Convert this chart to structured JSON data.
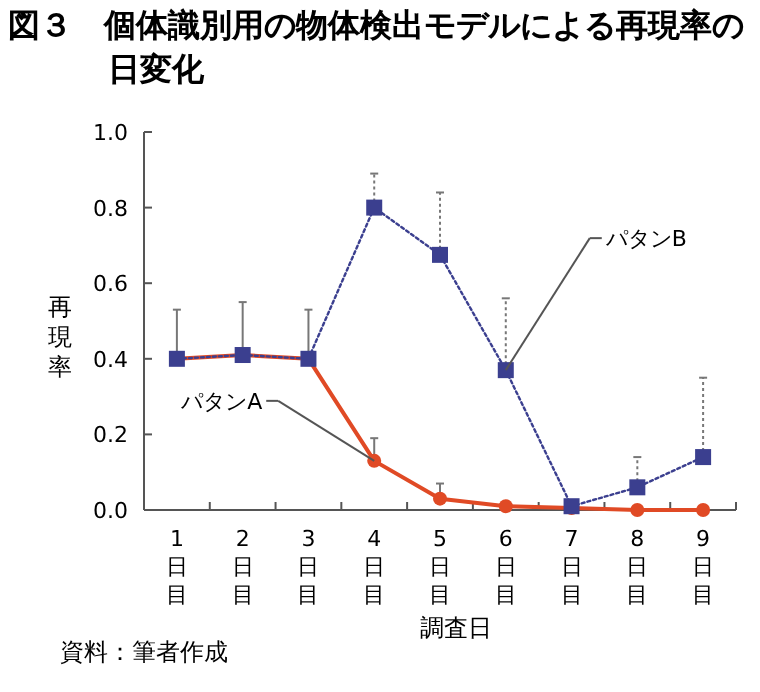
{
  "chart_data": {
    "type": "line",
    "title": "図３　個体識別用の物体検出モデルによる再現率の日変化",
    "xlabel": "調査日",
    "ylabel": "再現率",
    "annotations": [
      "資料：筆者作成"
    ],
    "categories": [
      "1日目",
      "2日目",
      "3日目",
      "4日目",
      "5日目",
      "6日目",
      "7日目",
      "8日目",
      "9日目"
    ],
    "ylim": [
      0,
      1
    ],
    "yticks": [
      {
        "value": 0,
        "label": "0.0"
      },
      {
        "value": 0.2,
        "label": "0.2"
      },
      {
        "value": 0.4,
        "label": "0.4"
      },
      {
        "value": 0.6,
        "label": "0.6"
      },
      {
        "value": 0.8,
        "label": "0.8"
      },
      {
        "value": 1,
        "label": "1.0"
      }
    ],
    "grid": false,
    "legend": false,
    "series": [
      {
        "name": "パタンA",
        "color": "#e04a25",
        "marker": "circle",
        "line_style": "solid",
        "values": [
          0.4,
          0.41,
          0.4,
          0.13,
          0.03,
          0.01,
          0.005,
          0,
          0
        ],
        "errors": [
          [
            0.4,
            0.53
          ],
          [
            0.41,
            0.55
          ],
          [
            0.4,
            0.53
          ],
          [
            0.13,
            0.19
          ],
          [
            0.03,
            0.07
          ],
          null,
          null,
          null,
          null
        ]
      },
      {
        "name": "パタンB",
        "color": "#3b3f8f",
        "marker": "square",
        "line_style": "dotted",
        "values": [
          0.4,
          0.41,
          0.4,
          0.8,
          0.675,
          0.37,
          0.01,
          0.06,
          0.14
        ],
        "errors": [
          null,
          null,
          null,
          [
            0.8,
            0.89
          ],
          [
            0.675,
            0.84
          ],
          [
            0.37,
            0.56
          ],
          null,
          [
            0.06,
            0.14
          ],
          [
            0.14,
            0.35
          ]
        ]
      }
    ]
  }
}
